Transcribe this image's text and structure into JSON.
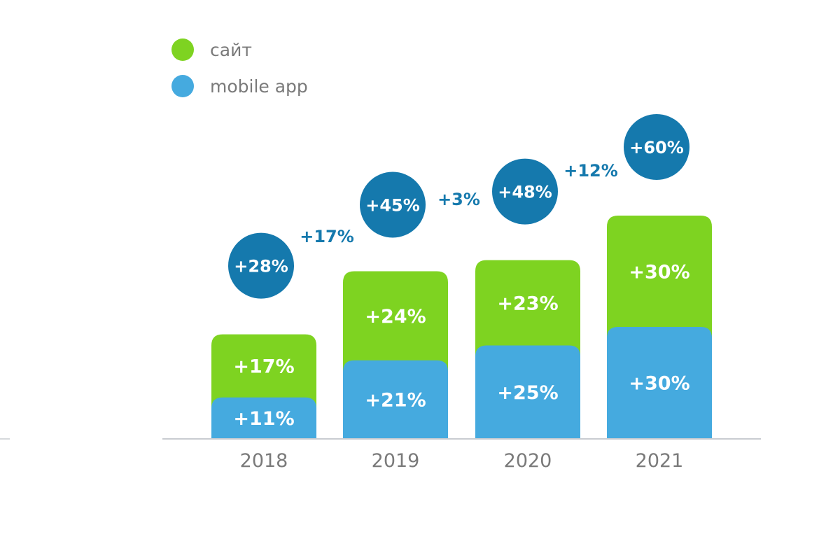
{
  "chart_data": {
    "type": "bar",
    "stacked": true,
    "title": "",
    "xlabel": "",
    "ylabel": "",
    "categories": [
      "2018",
      "2019",
      "2020",
      "2021"
    ],
    "series": [
      {
        "name": "mobile app",
        "color": "#45aadf",
        "values": [
          11,
          21,
          25,
          30
        ],
        "labels": [
          "+11%",
          "+21%",
          "+25%",
          "+30%"
        ]
      },
      {
        "name": "сайт",
        "color": "#7ed321",
        "values": [
          17,
          24,
          23,
          30
        ],
        "labels": [
          "+17%",
          "+24%",
          "+23%",
          "+30%"
        ]
      }
    ],
    "totals": {
      "values": [
        28,
        45,
        48,
        60
      ],
      "labels": [
        "+28%",
        "+45%",
        "+48%",
        "+60%"
      ],
      "color": "#1579ad"
    },
    "changes": {
      "values": [
        17,
        3,
        12
      ],
      "labels": [
        "+17%",
        "+3%",
        "+12%"
      ],
      "color": "#1579ad"
    },
    "legend": [
      {
        "name": "сайт",
        "color": "#7ed321"
      },
      {
        "name": "mobile app",
        "color": "#45aadf"
      }
    ],
    "legend_position": "top-left",
    "grid": false
  }
}
